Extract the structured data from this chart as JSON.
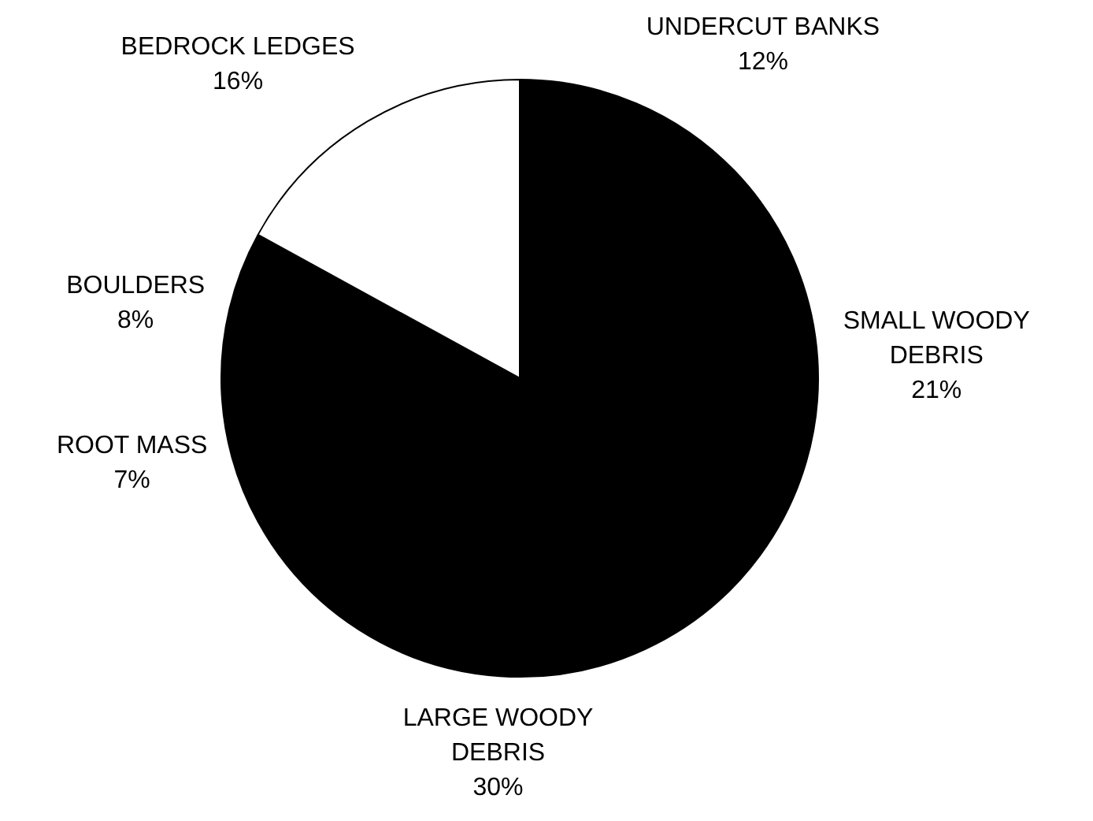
{
  "chart_data": {
    "type": "pie",
    "categories": [
      "UNDERCUT BANKS",
      "SMALL WOODY DEBRIS",
      "LARGE WOODY DEBRIS",
      "ROOT MASS",
      "BOULDERS",
      "BEDROCK LEDGES"
    ],
    "values": [
      12,
      21,
      30,
      7,
      8,
      16
    ],
    "value_labels": [
      "12%",
      "21%",
      "30%",
      "7%",
      "8%",
      "16%"
    ],
    "colors": [
      "#000000",
      "#000000",
      "#000000",
      "#000000",
      "#000000",
      "#ffffff"
    ],
    "legend": false
  }
}
